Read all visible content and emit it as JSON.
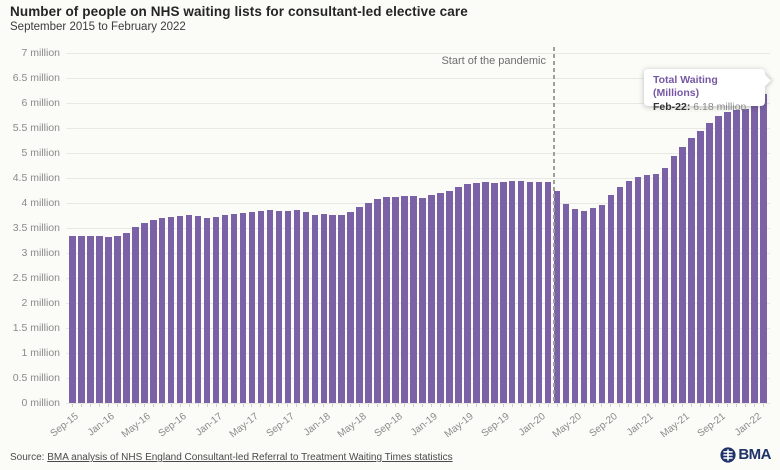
{
  "colors": {
    "bar": "#7b61a6",
    "accent_purple": "#7557a4",
    "logo_navy": "#1f3368",
    "grid": "#e9e9e3",
    "dashed_line": "#9f9f9b"
  },
  "annotation": {
    "label": "Start of the pandemic"
  },
  "tooltip": {
    "title": "Total Waiting (Millions)",
    "label": "Feb-22:",
    "value": "6.18 million"
  },
  "footer": {
    "source_prefix": "Source:",
    "source_link": "BMA analysis of NHS England Consultant-led Referral to Treatment Waiting Times statistics",
    "logo_text": "BMA"
  },
  "chart_data": {
    "type": "bar",
    "title": "Number of people on NHS waiting lists for consultant-led elective care",
    "subtitle": "September 2015 to February 2022",
    "xlabel": "",
    "ylabel": "",
    "ylim": [
      0,
      7
    ],
    "y_tick_step": 0.5,
    "grid": true,
    "legend": false,
    "y_tick_labels": [
      "0 million",
      "0.5 million",
      "1 million",
      "1.5 million",
      "2 million",
      "2.5 million",
      "3 million",
      "3.5 million",
      "4 million",
      "4.5 million",
      "5 million",
      "5.5 million",
      "6 million",
      "6.5 million",
      "7 million"
    ],
    "x_tick_label_every": 4,
    "pandemic_line_before": "Mar-20",
    "x": [
      "Sep-15",
      "Oct-15",
      "Nov-15",
      "Dec-15",
      "Jan-16",
      "Feb-16",
      "Mar-16",
      "Apr-16",
      "May-16",
      "Jun-16",
      "Jul-16",
      "Aug-16",
      "Sep-16",
      "Oct-16",
      "Nov-16",
      "Dec-16",
      "Jan-17",
      "Feb-17",
      "Mar-17",
      "Apr-17",
      "May-17",
      "Jun-17",
      "Jul-17",
      "Aug-17",
      "Sep-17",
      "Oct-17",
      "Nov-17",
      "Dec-17",
      "Jan-18",
      "Feb-18",
      "Mar-18",
      "Apr-18",
      "May-18",
      "Jun-18",
      "Jul-18",
      "Aug-18",
      "Sep-18",
      "Oct-18",
      "Nov-18",
      "Dec-18",
      "Jan-19",
      "Feb-19",
      "Mar-19",
      "Apr-19",
      "May-19",
      "Jun-19",
      "Jul-19",
      "Aug-19",
      "Sep-19",
      "Oct-19",
      "Nov-19",
      "Dec-19",
      "Jan-20",
      "Feb-20",
      "Mar-20",
      "Apr-20",
      "May-20",
      "Jun-20",
      "Jul-20",
      "Aug-20",
      "Sep-20",
      "Oct-20",
      "Nov-20",
      "Dec-20",
      "Jan-21",
      "Feb-21",
      "Mar-21",
      "Apr-21",
      "May-21",
      "Jun-21",
      "Jul-21",
      "Aug-21",
      "Sep-21",
      "Oct-21",
      "Nov-21",
      "Dec-21",
      "Jan-22",
      "Feb-22"
    ],
    "values": [
      3.35,
      3.35,
      3.35,
      3.34,
      3.33,
      3.34,
      3.4,
      3.52,
      3.61,
      3.66,
      3.7,
      3.72,
      3.74,
      3.76,
      3.74,
      3.7,
      3.73,
      3.76,
      3.78,
      3.81,
      3.83,
      3.85,
      3.86,
      3.85,
      3.84,
      3.86,
      3.83,
      3.76,
      3.78,
      3.77,
      3.76,
      3.83,
      3.92,
      4.0,
      4.08,
      4.12,
      4.13,
      4.15,
      4.14,
      4.1,
      4.16,
      4.2,
      4.24,
      4.32,
      4.38,
      4.4,
      4.42,
      4.4,
      4.42,
      4.44,
      4.45,
      4.42,
      4.43,
      4.43,
      4.24,
      3.98,
      3.88,
      3.85,
      3.9,
      3.97,
      4.17,
      4.33,
      4.44,
      4.52,
      4.56,
      4.59,
      4.7,
      4.95,
      5.12,
      5.3,
      5.45,
      5.61,
      5.74,
      5.83,
      5.86,
      5.88,
      6.07,
      6.18
    ]
  }
}
